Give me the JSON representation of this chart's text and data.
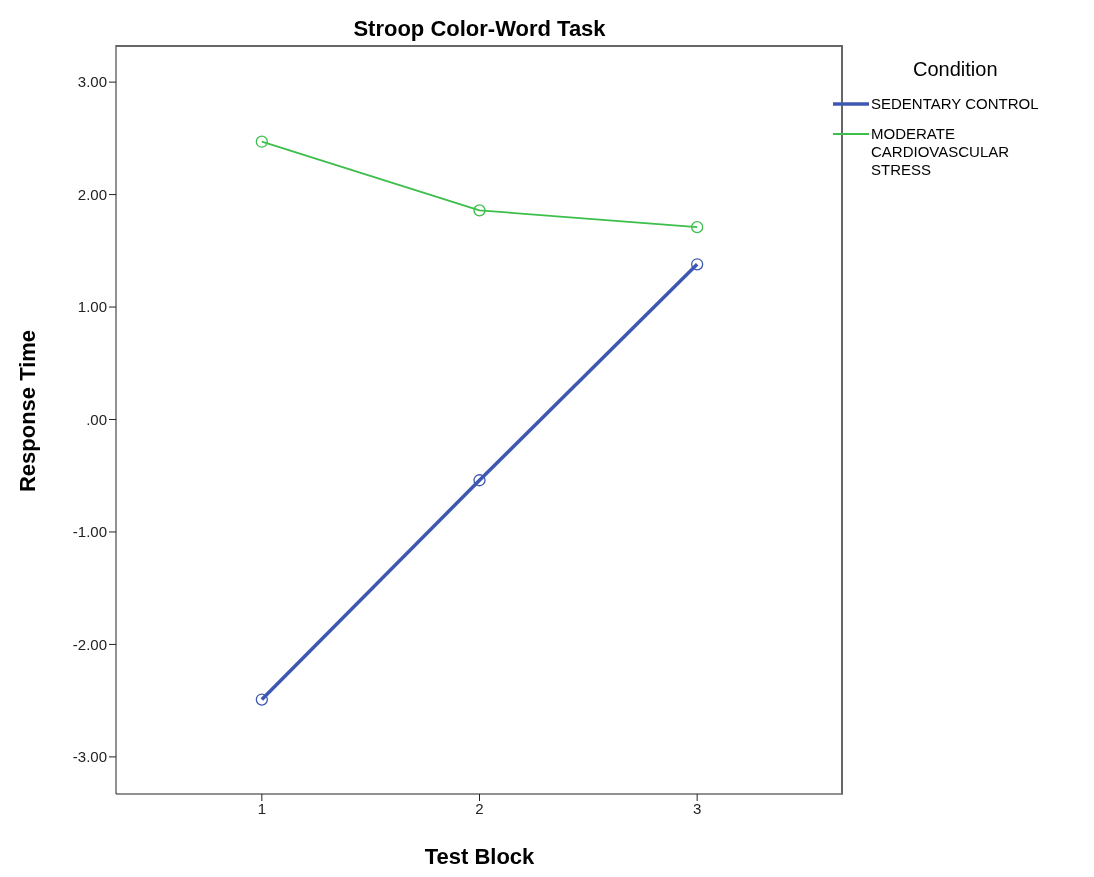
{
  "chart_data": {
    "type": "line",
    "title": "Stroop Color-Word Task",
    "xlabel": "Test Block",
    "ylabel": "Response Time",
    "legend_title": "Condition",
    "x": [
      1,
      2,
      3
    ],
    "xlim": [
      0.33,
      3.67
    ],
    "xticks": [
      1,
      2,
      3
    ],
    "ylim": [
      -3.33,
      3.33
    ],
    "yticks": [
      {
        "value": -3,
        "label": "-3.00"
      },
      {
        "value": -2,
        "label": "-2.00"
      },
      {
        "value": -1,
        "label": "-1.00"
      },
      {
        "value": 0,
        "label": ".00"
      },
      {
        "value": 1,
        "label": "1.00"
      },
      {
        "value": 2,
        "label": "2.00"
      },
      {
        "value": 3,
        "label": "3.00"
      }
    ],
    "series": [
      {
        "name": "SEDENTARY CONTROL",
        "color": "#3e58b2",
        "values": [
          -2.49,
          -0.54,
          1.38
        ]
      },
      {
        "name": "MODERATE CARDIOVASCULAR STRESS",
        "color": "#3cbf4a",
        "values": [
          2.47,
          1.86,
          1.71
        ]
      }
    ],
    "marker": "circle",
    "legend": "top right",
    "grid": false
  }
}
